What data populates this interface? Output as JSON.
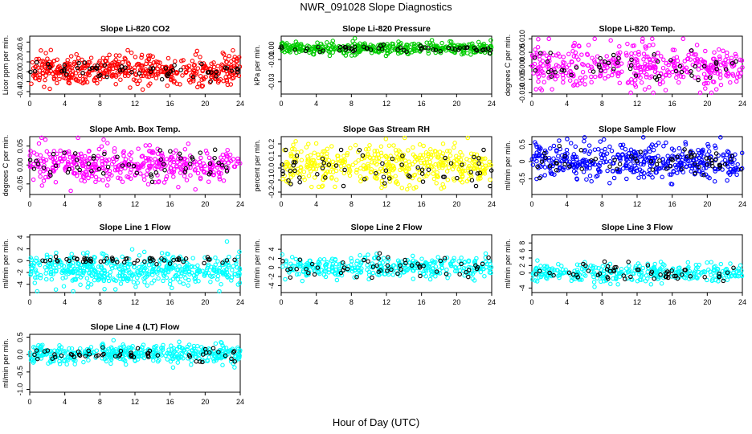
{
  "figure": {
    "title": "NWR_091028  Slope Diagnostics",
    "xlabel": "Hour of Day (UTC)"
  },
  "chart_data": [
    {
      "type": "scatter",
      "title": "Slope Li-820 CO2",
      "ylabel": "Licor ppm per min.",
      "xlim": [
        0,
        24
      ],
      "xticks": [
        "0",
        "4",
        "8",
        "12",
        "16",
        "20",
        "24"
      ],
      "ylim": [
        -0.45,
        0.72
      ],
      "yticks": [
        "-0.4",
        "-0.2",
        "0.0",
        "0.2",
        "0.4",
        "0.6"
      ],
      "yticks_values": [
        -0.4,
        -0.2,
        0.0,
        0.2,
        0.4,
        0.6
      ],
      "series": [
        {
          "color": "#ff0000",
          "n": 480,
          "center": 0.03,
          "spread": 0.15,
          "min": -0.44,
          "max": 0.7
        },
        {
          "color": "#000000",
          "n": 55,
          "center": 0.02,
          "spread": 0.1,
          "min": -0.2,
          "max": 0.45
        }
      ],
      "grid": false
    },
    {
      "type": "scatter",
      "title": "Slope Li-820 Pressure",
      "ylabel": "kPa per min.",
      "xlim": [
        0,
        24
      ],
      "xticks": [
        "0",
        "4",
        "8",
        "12",
        "16",
        "20",
        "24"
      ],
      "ylim": [
        -0.041,
        0.011
      ],
      "yticks": [
        "-0.03",
        "-0.01",
        "0.00"
      ],
      "yticks_values": [
        -0.03,
        -0.01,
        0.0
      ],
      "series": [
        {
          "color": "#00cc00",
          "n": 380,
          "center": 0.0,
          "spread": 0.0025,
          "min": -0.04,
          "max": 0.009
        },
        {
          "color": "#000000",
          "n": 55,
          "center": 0.0,
          "spread": 0.0015,
          "min": -0.005,
          "max": 0.004
        }
      ],
      "grid": false
    },
    {
      "type": "scatter",
      "title": "Slope Li-820 Temp.",
      "ylabel": "degrees C per min.",
      "xlim": [
        0,
        24
      ],
      "xticks": [
        "0",
        "4",
        "8",
        "12",
        "16",
        "20",
        "24"
      ],
      "ylim": [
        -0.0105,
        0.011
      ],
      "yticks": [
        "-0.010",
        "-0.005",
        "0.000",
        "0.005",
        "0.010"
      ],
      "yticks_values": [
        -0.01,
        -0.005,
        0.0,
        0.005,
        0.01
      ],
      "series": [
        {
          "color": "#ff00ff",
          "n": 420,
          "center": 0.0,
          "spread": 0.004,
          "min": -0.01,
          "max": 0.01
        },
        {
          "color": "#000000",
          "n": 50,
          "center": 0.0,
          "spread": 0.003,
          "min": -0.01,
          "max": 0.008
        }
      ],
      "grid": false
    },
    {
      "type": "scatter",
      "title": "Slope Amb. Box Temp.",
      "ylabel": "degrees C per min.",
      "xlim": [
        0,
        24
      ],
      "xticks": [
        "0",
        "4",
        "8",
        "12",
        "16",
        "20",
        "24"
      ],
      "ylim": [
        -0.078,
        0.075
      ],
      "yticks": [
        "-0.05",
        "0.00",
        "0.05"
      ],
      "yticks_values": [
        -0.05,
        0.0,
        0.05
      ],
      "series": [
        {
          "color": "#ff00ff",
          "n": 420,
          "center": 0.0,
          "spread": 0.025,
          "min": -0.075,
          "max": 0.072
        },
        {
          "color": "#000000",
          "n": 55,
          "center": 0.0,
          "spread": 0.02,
          "min": -0.06,
          "max": 0.06
        }
      ],
      "grid": false
    },
    {
      "type": "scatter",
      "title": "Slope Gas Stream RH",
      "ylabel": "percent per min.",
      "xlim": [
        0,
        24
      ],
      "xticks": [
        "0",
        "4",
        "8",
        "12",
        "16",
        "20",
        "24"
      ],
      "ylim": [
        -0.22,
        0.26
      ],
      "yticks": [
        "-0.2",
        "-0.1",
        "0.0",
        "0.1",
        "0.2"
      ],
      "yticks_values": [
        -0.2,
        -0.1,
        0.0,
        0.1,
        0.2
      ],
      "series": [
        {
          "color": "#ffff00",
          "n": 450,
          "center": 0.02,
          "spread": 0.08,
          "min": -0.2,
          "max": 0.25
        },
        {
          "color": "#000000",
          "n": 60,
          "center": 0.0,
          "spread": 0.07,
          "min": -0.15,
          "max": 0.15
        }
      ],
      "grid": false
    },
    {
      "type": "scatter",
      "title": "Slope Sample Flow",
      "ylabel": "ml/min per min.",
      "xlim": [
        0,
        24
      ],
      "xticks": [
        "0",
        "4",
        "8",
        "12",
        "16",
        "20",
        "24"
      ],
      "ylim": [
        -0.95,
        0.72
      ],
      "yticks": [
        "-0.5",
        "0",
        "0.5"
      ],
      "yticks_values": [
        -0.5,
        0.0,
        0.5
      ],
      "series": [
        {
          "color": "#0000ff",
          "n": 450,
          "center": 0.0,
          "spread": 0.25,
          "min": -0.9,
          "max": 0.7
        },
        {
          "color": "#000000",
          "n": 60,
          "center": 0.0,
          "spread": 0.2,
          "min": -0.5,
          "max": 0.45
        }
      ],
      "grid": false
    },
    {
      "type": "scatter",
      "title": "Slope Line 1 Flow",
      "ylabel": "ml/min per min.",
      "xlim": [
        0,
        24
      ],
      "xticks": [
        "0",
        "4",
        "8",
        "12",
        "16",
        "20",
        "24"
      ],
      "ylim": [
        -5.4,
        4.4
      ],
      "yticks": [
        "-4",
        "-2",
        "0",
        "2",
        "4"
      ],
      "yticks_values": [
        -4,
        -2,
        0,
        2,
        4
      ],
      "series": [
        {
          "color": "#00ffff",
          "n": 480,
          "center": -1.6,
          "spread": 1.3,
          "min": -5.2,
          "max": 4.0
        },
        {
          "color": "#000000",
          "n": 55,
          "center": 0.1,
          "spread": 0.3,
          "min": -0.6,
          "max": 0.8
        }
      ],
      "grid": false
    },
    {
      "type": "scatter",
      "title": "Slope Line 2 Flow",
      "ylabel": "ml/min per min.",
      "xlim": [
        0,
        24
      ],
      "xticks": [
        "0",
        "4",
        "8",
        "12",
        "16",
        "20",
        "24"
      ],
      "ylim": [
        -5.5,
        7.2
      ],
      "yticks": [
        "-4",
        "-2",
        "0",
        "2",
        "4"
      ],
      "yticks_values": [
        -4,
        -2,
        0,
        2,
        4
      ],
      "series": [
        {
          "color": "#00ffff",
          "n": 340,
          "center": 0.0,
          "spread": 1.1,
          "min": -5.2,
          "max": 7.0
        },
        {
          "color": "#000000",
          "n": 55,
          "center": 0.0,
          "spread": 1.3,
          "min": -5.0,
          "max": 5.5
        }
      ],
      "grid": false
    },
    {
      "type": "scatter",
      "title": "Slope Line 3 Flow",
      "ylabel": "ml/min per min.",
      "xlim": [
        0,
        24
      ],
      "xticks": [
        "0",
        "4",
        "8",
        "12",
        "16",
        "20",
        "24"
      ],
      "ylim": [
        -5.2,
        10.2
      ],
      "yticks": [
        "-4",
        "0",
        "2",
        "4",
        "6",
        "8"
      ],
      "yticks_values": [
        -4,
        0,
        2,
        4,
        6,
        8
      ],
      "series": [
        {
          "color": "#00ffff",
          "n": 320,
          "center": 0.0,
          "spread": 1.2,
          "min": -4.5,
          "max": 9.5
        },
        {
          "color": "#000000",
          "n": 55,
          "center": 0.0,
          "spread": 1.3,
          "min": -4.5,
          "max": 5.0
        }
      ],
      "grid": false
    },
    {
      "type": "scatter",
      "title": "Slope Line 4 (LT) Flow",
      "ylabel": "ml/min per min.",
      "xlim": [
        0,
        24
      ],
      "xticks": [
        "0",
        "4",
        "8",
        "12",
        "16",
        "20",
        "24"
      ],
      "ylim": [
        -1.08,
        0.58
      ],
      "yticks": [
        "-1.0",
        "-0.5",
        "0.0",
        "0.5"
      ],
      "yticks_values": [
        -1.0,
        -0.5,
        0.0,
        0.5
      ],
      "series": [
        {
          "color": "#00ffff",
          "n": 420,
          "center": 0.02,
          "spread": 0.13,
          "min": -1.05,
          "max": 0.55
        },
        {
          "color": "#000000",
          "n": 55,
          "center": 0.0,
          "spread": 0.1,
          "min": -0.3,
          "max": 0.3
        }
      ],
      "grid": false
    }
  ]
}
